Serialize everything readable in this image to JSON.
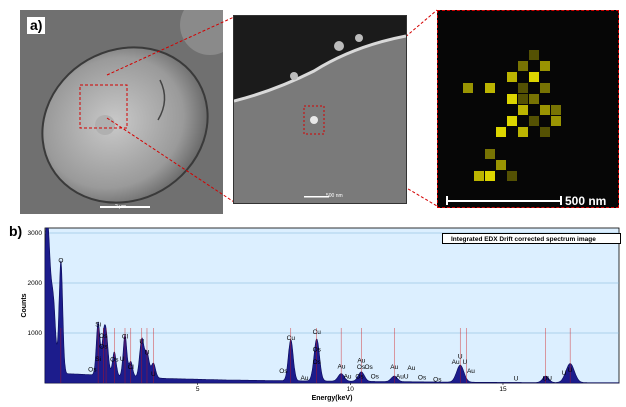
{
  "panel_labels": {
    "a": "a)",
    "b": "b)"
  },
  "panel_a": {
    "sem_main_scale": "2 µm",
    "sem_zoom_scale": "500 nm",
    "edx_map_scale": "500 nm",
    "edx_map_color": "#e8e000"
  },
  "chart_data": {
    "type": "line",
    "title": "",
    "legend": "Integrated EDX Drift corrected spectrum image",
    "legend_position": "top-right",
    "xlabel": "Energy(keV)",
    "ylabel": "Counts",
    "xlim": [
      0,
      18.8
    ],
    "ylim": [
      0,
      3100
    ],
    "x_ticks": [
      5,
      10,
      15
    ],
    "y_ticks": [
      1000,
      2000,
      3000
    ],
    "grid": "horizontal",
    "fill_color": "#1c1c8c",
    "background_color": "#dcefff",
    "peaks": [
      {
        "x": 0.07,
        "y": 3100,
        "w": 0.1
      },
      {
        "x": 0.28,
        "y": 1200,
        "w": 0.07
      },
      {
        "x": 0.52,
        "y": 2250,
        "w": 0.06
      },
      {
        "x": 1.74,
        "y": 1050,
        "w": 0.06
      },
      {
        "x": 1.91,
        "y": 500,
        "w": 0.06
      },
      {
        "x": 2.0,
        "y": 780,
        "w": 0.07
      },
      {
        "x": 2.27,
        "y": 480,
        "w": 0.06
      },
      {
        "x": 2.62,
        "y": 830,
        "w": 0.06
      },
      {
        "x": 2.81,
        "y": 300,
        "w": 0.06
      },
      {
        "x": 3.17,
        "y": 760,
        "w": 0.07
      },
      {
        "x": 3.34,
        "y": 480,
        "w": 0.07
      },
      {
        "x": 3.55,
        "y": 290,
        "w": 0.07
      },
      {
        "x": 8.05,
        "y": 820,
        "w": 0.08
      },
      {
        "x": 8.9,
        "y": 840,
        "w": 0.09
      },
      {
        "x": 9.7,
        "y": 150,
        "w": 0.1
      },
      {
        "x": 10.36,
        "y": 190,
        "w": 0.1
      },
      {
        "x": 11.44,
        "y": 110,
        "w": 0.1
      },
      {
        "x": 13.6,
        "y": 340,
        "w": 0.12
      },
      {
        "x": 16.4,
        "y": 130,
        "w": 0.1
      },
      {
        "x": 17.2,
        "y": 380,
        "w": 0.14
      }
    ],
    "background_counts": [
      [
        0,
        200
      ],
      [
        1,
        180
      ],
      [
        2,
        150
      ],
      [
        3,
        120
      ],
      [
        4,
        90
      ],
      [
        6,
        60
      ],
      [
        8,
        45
      ],
      [
        10,
        35
      ],
      [
        12,
        25
      ],
      [
        14,
        15
      ],
      [
        16,
        10
      ],
      [
        18.8,
        5
      ]
    ],
    "element_labels": [
      {
        "text": "O",
        "x": 0.52,
        "y": 2410
      },
      {
        "text": "Si",
        "x": 1.74,
        "y": 1130
      },
      {
        "text": "Os",
        "x": 1.91,
        "y": 900
      },
      {
        "text": "Os",
        "x": 1.91,
        "y": 690
      },
      {
        "text": "Si",
        "x": 1.74,
        "y": 440
      },
      {
        "text": "Os",
        "x": 1.55,
        "y": 230
      },
      {
        "text": "Os",
        "x": 2.27,
        "y": 430
      },
      {
        "text": "U",
        "x": 2.53,
        "y": 440
      },
      {
        "text": "Cl",
        "x": 2.62,
        "y": 890
      },
      {
        "text": "Cl",
        "x": 2.81,
        "y": 280
      },
      {
        "text": "U",
        "x": 3.17,
        "y": 790
      },
      {
        "text": "U",
        "x": 3.34,
        "y": 570
      },
      {
        "text": "U",
        "x": 3.55,
        "y": 140
      },
      {
        "text": "Cu",
        "x": 8.05,
        "y": 860
      },
      {
        "text": "Cu",
        "x": 8.9,
        "y": 980
      },
      {
        "text": "Os",
        "x": 8.9,
        "y": 630
      },
      {
        "text": "Os",
        "x": 8.9,
        "y": 380
      },
      {
        "text": "Os",
        "x": 7.81,
        "y": 200
      },
      {
        "text": "Au",
        "x": 8.5,
        "y": 60
      },
      {
        "text": "Au",
        "x": 9.71,
        "y": 290
      },
      {
        "text": "Au",
        "x": 9.91,
        "y": 90
      },
      {
        "text": "Os",
        "x": 10.35,
        "y": 280
      },
      {
        "text": "Au",
        "x": 10.36,
        "y": 410
      },
      {
        "text": "Os",
        "x": 10.6,
        "y": 280
      },
      {
        "text": "Os",
        "x": 10.3,
        "y": 90
      },
      {
        "text": "Os",
        "x": 10.8,
        "y": 90
      },
      {
        "text": "Au",
        "x": 11.44,
        "y": 280
      },
      {
        "text": "AuU",
        "x": 11.7,
        "y": 90
      },
      {
        "text": "Au",
        "x": 12.0,
        "y": 260
      },
      {
        "text": "Os",
        "x": 12.35,
        "y": 70
      },
      {
        "text": "Os",
        "x": 12.85,
        "y": 30
      },
      {
        "text": "Au",
        "x": 13.45,
        "y": 380
      },
      {
        "text": "U",
        "x": 13.6,
        "y": 490
      },
      {
        "text": "U",
        "x": 13.75,
        "y": 380
      },
      {
        "text": "Au",
        "x": 13.95,
        "y": 200
      },
      {
        "text": "U",
        "x": 15.43,
        "y": 50
      },
      {
        "text": "UU",
        "x": 16.45,
        "y": 50
      },
      {
        "text": "U",
        "x": 17.0,
        "y": 160
      },
      {
        "text": "U",
        "x": 17.2,
        "y": 220
      }
    ],
    "marker_lines": [
      0.52,
      1.74,
      1.91,
      2.0,
      2.27,
      2.62,
      2.81,
      3.17,
      3.34,
      3.55,
      8.05,
      8.9,
      9.7,
      10.36,
      11.44,
      13.6,
      13.8,
      16.4,
      17.2
    ]
  }
}
